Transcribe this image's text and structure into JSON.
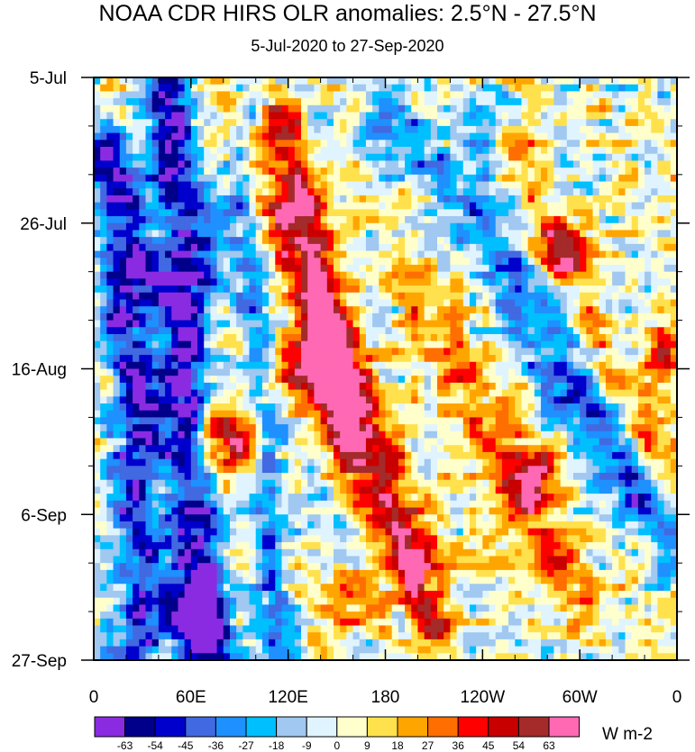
{
  "chart_data": {
    "type": "heatmap",
    "title": "NOAA CDR HIRS OLR anomalies: 2.5°N - 27.5°N",
    "subtitle": "5-Jul-2020 to 27-Sep-2020",
    "x_ticks": [
      {
        "lon": 0,
        "label": "0"
      },
      {
        "lon": 60,
        "label": "60E"
      },
      {
        "lon": 120,
        "label": "120E"
      },
      {
        "lon": 180,
        "label": "180"
      },
      {
        "lon": 240,
        "label": "120W"
      },
      {
        "lon": 300,
        "label": "60W"
      },
      {
        "lon": 360,
        "label": "0"
      }
    ],
    "x_range": [
      0,
      360
    ],
    "y_ticks": [
      {
        "day": 0,
        "label": "5-Jul"
      },
      {
        "day": 21,
        "label": "26-Jul"
      },
      {
        "day": 42,
        "label": "16-Aug"
      },
      {
        "day": 63,
        "label": "6-Sep"
      },
      {
        "day": 84,
        "label": "27-Sep"
      }
    ],
    "y_range_days": [
      0,
      84
    ],
    "colorbar": {
      "levels": [
        "-63",
        "-54",
        "-45",
        "-36",
        "-27",
        "-18",
        "-9",
        "0",
        "9",
        "18",
        "27",
        "36",
        "45",
        "54",
        "63"
      ],
      "colors": [
        "#8a2be2",
        "#00008b",
        "#0000cd",
        "#4169e1",
        "#1e90ff",
        "#00bfff",
        "#a0c8f0",
        "#e0f4ff",
        "#ffffcc",
        "#ffe14d",
        "#ffa500",
        "#ff6e00",
        "#ff0000",
        "#c80000",
        "#a52a2a",
        "#ff69b4"
      ],
      "units": "W m-2"
    },
    "features": [
      {
        "type": "band",
        "pts": [
          [
            10,
            10
          ],
          [
            22,
            20
          ],
          [
            18,
            35
          ],
          [
            30,
            45
          ],
          [
            25,
            60
          ],
          [
            35,
            75
          ],
          [
            20,
            84
          ]
        ],
        "amp": -55,
        "w": 11
      },
      {
        "type": "band",
        "pts": [
          [
            45,
            0
          ],
          [
            50,
            15
          ],
          [
            60,
            25
          ],
          [
            55,
            40
          ],
          [
            58,
            55
          ],
          [
            65,
            70
          ],
          [
            70,
            84
          ]
        ],
        "amp": -60,
        "w": 10
      },
      {
        "type": "band",
        "pts": [
          [
            95,
            0
          ],
          [
            92,
            20
          ],
          [
            100,
            35
          ],
          [
            108,
            50
          ],
          [
            110,
            65
          ],
          [
            115,
            84
          ]
        ],
        "amp": -35,
        "w": 8
      },
      {
        "type": "band",
        "pts": [
          [
            80,
            0
          ],
          [
            100,
            10
          ],
          [
            120,
            25
          ],
          [
            150,
            40
          ],
          [
            180,
            55
          ],
          [
            200,
            70
          ]
        ],
        "amp": 35,
        "w": 10
      },
      {
        "type": "band",
        "pts": [
          [
            115,
            5
          ],
          [
            130,
            15
          ],
          [
            140,
            30
          ],
          [
            145,
            45
          ],
          [
            160,
            55
          ],
          [
            185,
            65
          ],
          [
            210,
            80
          ]
        ],
        "amp": 42,
        "w": 8
      },
      {
        "type": "band",
        "pts": [
          [
            150,
            35
          ],
          [
            155,
            42
          ],
          [
            160,
            50
          ]
        ],
        "amp": 30,
        "w": 12
      },
      {
        "type": "band",
        "pts": [
          [
            180,
            5
          ],
          [
            230,
            20
          ],
          [
            280,
            40
          ],
          [
            330,
            60
          ]
        ],
        "amp": -30,
        "w": 12
      },
      {
        "type": "band",
        "pts": [
          [
            240,
            10
          ],
          [
            270,
            25
          ],
          [
            300,
            40
          ],
          [
            360,
            70
          ]
        ],
        "amp": -25,
        "w": 10
      },
      {
        "type": "band",
        "pts": [
          [
            250,
            0
          ],
          [
            260,
            15
          ],
          [
            280,
            25
          ],
          [
            310,
            40
          ],
          [
            350,
            55
          ]
        ],
        "amp": 30,
        "w": 10
      },
      {
        "type": "band",
        "pts": [
          [
            200,
            30
          ],
          [
            230,
            45
          ],
          [
            260,
            60
          ],
          [
            300,
            75
          ]
        ],
        "amp": 30,
        "w": 12
      },
      {
        "type": "blob",
        "c": [
          130,
          42
        ],
        "amp": 60,
        "rx": 14,
        "ry": 4
      },
      {
        "type": "blob",
        "c": [
          85,
          52
        ],
        "amp": 55,
        "rx": 15,
        "ry": 3
      },
      {
        "type": "blob",
        "c": [
          270,
          57
        ],
        "amp": 55,
        "rx": 12,
        "ry": 3
      },
      {
        "type": "blob",
        "c": [
          290,
          25
        ],
        "amp": 45,
        "rx": 12,
        "ry": 3
      },
      {
        "type": "blob",
        "c": [
          125,
          20
        ],
        "amp": 35,
        "rx": 10,
        "ry": 3
      },
      {
        "type": "blob",
        "c": [
          250,
          4
        ],
        "amp": -45,
        "rx": 10,
        "ry": 3
      },
      {
        "type": "blob",
        "c": [
          65,
          78
        ],
        "amp": -55,
        "rx": 12,
        "ry": 4
      },
      {
        "type": "blob",
        "c": [
          40,
          30
        ],
        "amp": -50,
        "rx": 10,
        "ry": 3
      },
      {
        "type": "blob",
        "c": [
          350,
          40
        ],
        "amp": 40,
        "rx": 10,
        "ry": 3
      },
      {
        "type": "blob",
        "c": [
          160,
          75
        ],
        "amp": 35,
        "rx": 15,
        "ry": 3
      }
    ]
  }
}
